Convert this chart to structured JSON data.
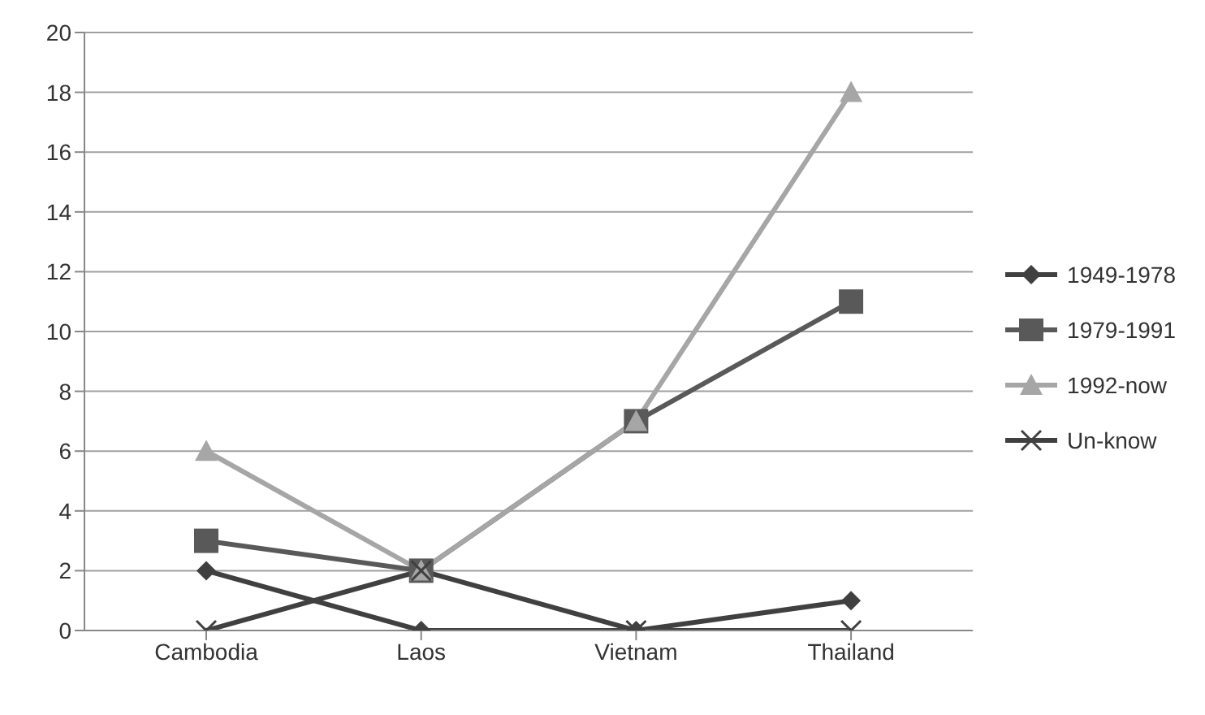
{
  "chart_data": {
    "type": "line",
    "categories": [
      "Cambodia",
      "Laos",
      "Vietnam",
      "Thailand"
    ],
    "series": [
      {
        "name": "1949-1978",
        "color": "#404040",
        "marker": "diamond",
        "values": [
          2,
          0,
          0,
          1
        ]
      },
      {
        "name": "1979-1991",
        "color": "#595959",
        "marker": "square",
        "values": [
          3,
          2,
          7,
          11
        ]
      },
      {
        "name": "1992-now",
        "color": "#a6a6a6",
        "marker": "triangle",
        "values": [
          6,
          2,
          7,
          18
        ]
      },
      {
        "name": "Un-know",
        "color": "#404040",
        "marker": "cross",
        "values": [
          0,
          2,
          0,
          0
        ]
      }
    ],
    "ylim": [
      0,
      20
    ],
    "yticks": [
      0,
      2,
      4,
      6,
      8,
      10,
      12,
      14,
      16,
      18,
      20
    ],
    "grid": "y",
    "legend": "right"
  }
}
